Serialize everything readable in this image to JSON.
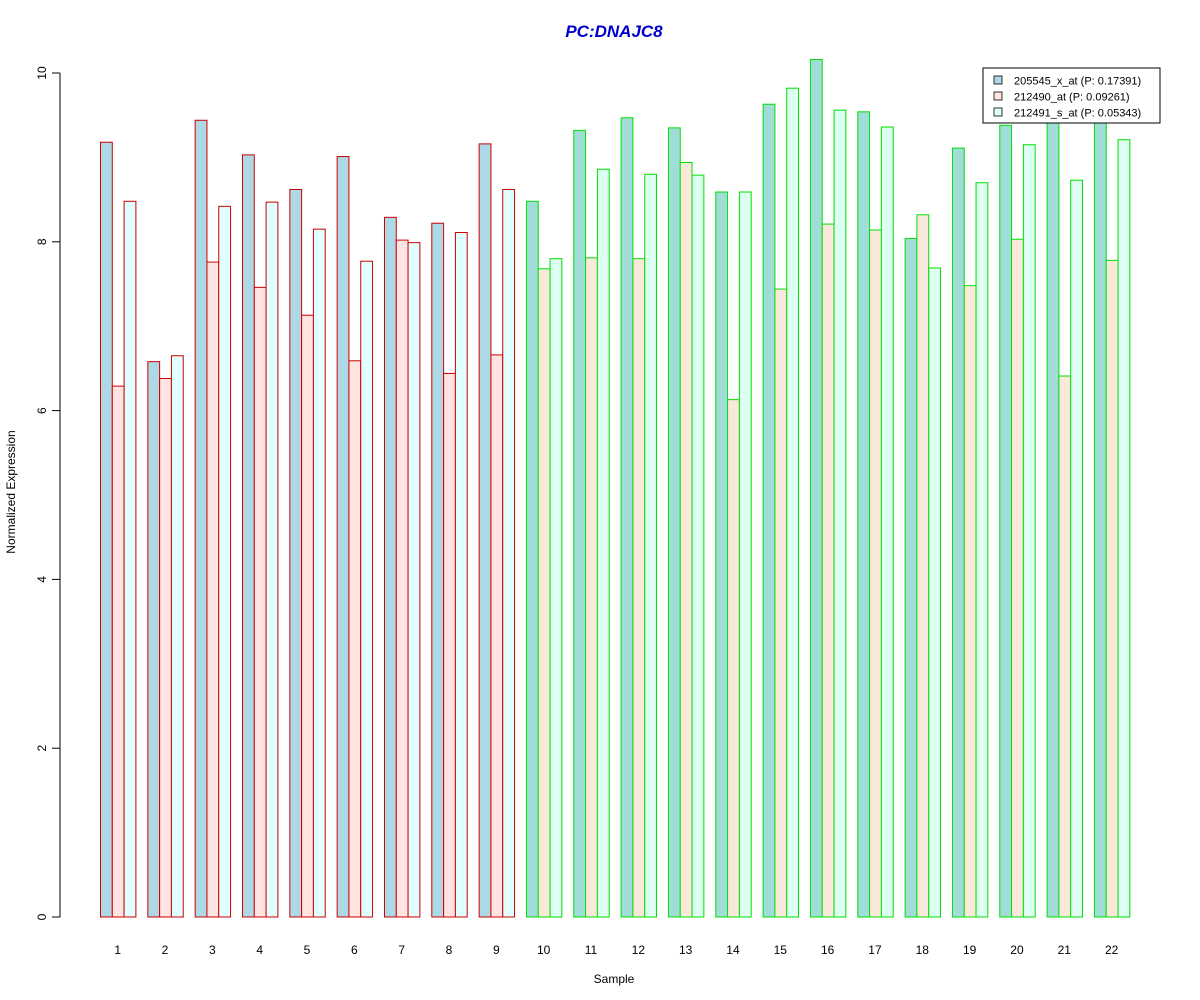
{
  "chart_data": {
    "type": "bar",
    "title": "PC:DNAJC8",
    "xlabel": "Sample",
    "ylabel": "Normalized Expression",
    "ylim": [
      0,
      10
    ],
    "y_ticks": [
      "0",
      "2",
      "4",
      "6",
      "8",
      "10"
    ],
    "categories": [
      "1",
      "2",
      "3",
      "4",
      "5",
      "6",
      "7",
      "8",
      "9",
      "10",
      "11",
      "12",
      "13",
      "14",
      "15",
      "16",
      "17",
      "18",
      "19",
      "20",
      "21",
      "22"
    ],
    "series": [
      {
        "name": "205545_x_at (P: 0.17391)",
        "values": [
          9.18,
          6.58,
          9.44,
          9.03,
          8.62,
          9.01,
          8.29,
          8.22,
          9.16,
          8.48,
          9.32,
          9.47,
          9.35,
          8.59,
          9.63,
          10.16,
          9.54,
          8.04,
          9.11,
          9.38,
          9.42,
          9.45
        ]
      },
      {
        "name": "212490_at (P: 0.09261)",
        "values": [
          6.29,
          6.38,
          7.76,
          7.46,
          7.13,
          6.59,
          8.02,
          6.44,
          6.66,
          7.68,
          7.81,
          7.8,
          8.94,
          6.13,
          7.44,
          8.21,
          8.14,
          8.32,
          7.48,
          8.03,
          6.41,
          7.78
        ]
      },
      {
        "name": "212491_s_at (P: 0.05343)",
        "values": [
          8.48,
          6.65,
          8.42,
          8.47,
          8.15,
          7.77,
          7.99,
          8.11,
          8.62,
          7.8,
          8.86,
          8.8,
          8.79,
          8.59,
          9.82,
          9.56,
          9.36,
          7.69,
          8.7,
          9.15,
          8.73,
          9.21
        ]
      }
    ],
    "group_of_sample": [
      "A",
      "A",
      "A",
      "A",
      "A",
      "A",
      "A",
      "A",
      "A",
      "B",
      "B",
      "B",
      "B",
      "B",
      "B",
      "B",
      "B",
      "B",
      "B",
      "B",
      "B",
      "B"
    ],
    "colors": {
      "title": "#0000cc",
      "group_A_border": "#cc0000",
      "group_B_border": "#00e000",
      "group_A_fills": [
        "#add8e6",
        "#ffe4e1",
        "#e0ffff"
      ],
      "group_B_fills": [
        "#a0dcd8",
        "#fae9da",
        "#dcfff2"
      ],
      "legend_fills": [
        "#add8e6",
        "#ffe4e1",
        "#e0ffff"
      ],
      "axis": "#000000"
    },
    "legend_position": "top-right"
  }
}
